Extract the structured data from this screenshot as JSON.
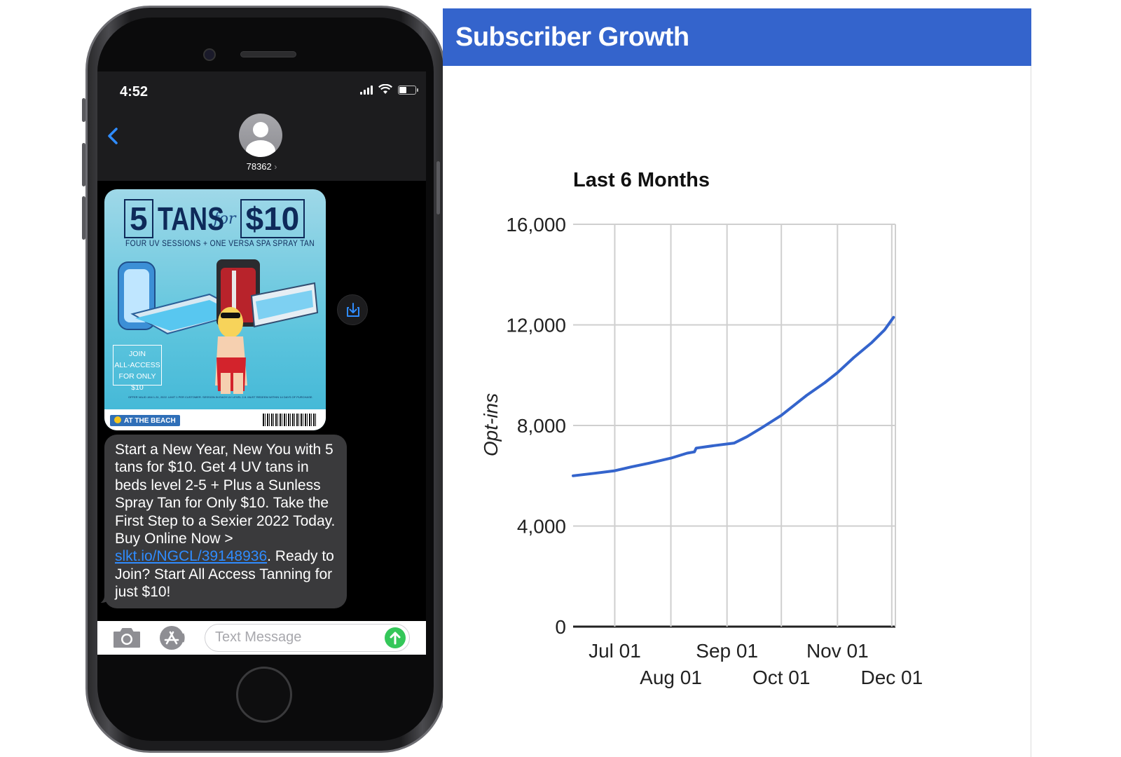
{
  "phone": {
    "status": {
      "time": "4:52"
    },
    "contact": {
      "number": "78362",
      "chevron": "›"
    },
    "mms_image": {
      "headline_number": "5",
      "headline_word": "TANS",
      "headline_for": "for",
      "headline_price": "$10",
      "subtitle": "FOUR UV SESSIONS + ONE VERSA SPA SPRAY TAN",
      "join_badge": [
        "JOIN",
        "ALL-ACCESS",
        "FOR ONLY $10"
      ],
      "fine_print": "OFFER VALID JAN 1-31, 2022. LIMIT 1 PER CUSTOMER. SESSION IN EACH UV LEVEL 2-5. MUST REDEEM WITHIN 14 DAYS OF PURCHASE.",
      "brand": "AT THE BEACH"
    },
    "message": {
      "text_before_link": "Start a New Year, New You with 5 tans for $10. Get 4 UV tans in beds level 2-5 + Plus a Sunless Spray Tan for Only $10. Take the First Step to a Sexier 2022 Today.  Buy Online Now > ",
      "link": "slkt.io/NGCL/39148936",
      "text_after_link": ". Ready to Join? Start All Access Tanning for just $10!"
    },
    "input": {
      "placeholder": "Text Message"
    },
    "icons": [
      "back-chevron-icon",
      "camera-icon",
      "app-store-icon",
      "send-arrow-icon",
      "download-icon",
      "contact-avatar-icon"
    ],
    "colors": {
      "accent": "#2f8cff",
      "send": "#34c759",
      "bubble": "#3a3a3c"
    }
  },
  "panel": {
    "title": "Subscriber Growth",
    "header_color": "#3464cc"
  },
  "chart_data": {
    "type": "line",
    "title": "Last 6 Months",
    "xlabel": "",
    "ylabel": "Opt-ins",
    "ylim": [
      0,
      16000
    ],
    "yticks": [
      0,
      4000,
      8000,
      12000,
      16000
    ],
    "ytick_labels": [
      "0",
      "4,000",
      "8,000",
      "12,000",
      "16,000"
    ],
    "xticks": [
      "2021-07-01",
      "2021-08-01",
      "2021-09-01",
      "2021-10-01",
      "2021-11-01",
      "2021-12-01"
    ],
    "xtick_labels": [
      "Jul 01",
      "Aug 01",
      "Sep 01",
      "Oct 01",
      "Nov 01",
      "Dec 01"
    ],
    "xlim": [
      "2021-06-08",
      "2021-12-03"
    ],
    "grid": true,
    "line_color": "#3464cc",
    "series": [
      {
        "x": [
          "2021-06-08",
          "2021-06-20",
          "2021-07-01",
          "2021-07-10",
          "2021-07-20",
          "2021-08-01",
          "2021-08-10",
          "2021-08-14",
          "2021-08-15",
          "2021-08-25",
          "2021-09-05",
          "2021-09-12",
          "2021-09-20",
          "2021-10-01",
          "2021-10-08",
          "2021-10-15",
          "2021-10-25",
          "2021-11-01",
          "2021-11-10",
          "2021-11-20",
          "2021-11-27",
          "2021-12-02"
        ],
        "y": [
          6000,
          6100,
          6200,
          6350,
          6500,
          6700,
          6900,
          6950,
          7100,
          7200,
          7300,
          7550,
          7900,
          8400,
          8800,
          9200,
          9700,
          10100,
          10700,
          11300,
          11800,
          12300
        ]
      }
    ]
  }
}
